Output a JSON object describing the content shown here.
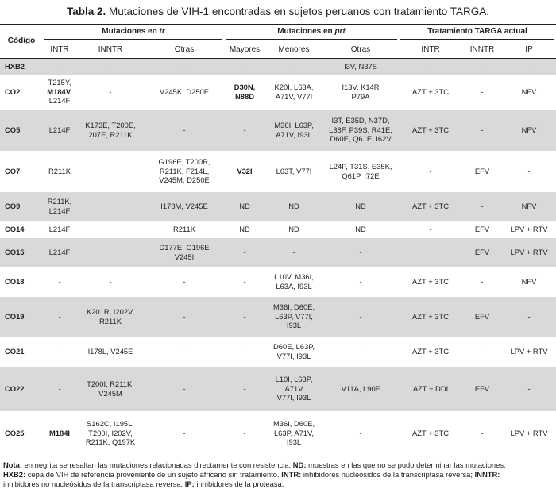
{
  "title": {
    "label": "Tabla 2.",
    "text": " Mutaciones de VIH-1 encontradas en sujetos peruanos con tratamiento TARGA."
  },
  "header": {
    "codigo": "Código",
    "group_tr_prefix": "Mutaciones en ",
    "group_tr_italic": "tr",
    "group_prt_prefix": "Mutaciones en ",
    "group_prt_italic": "prt",
    "group_targa": "Tratamiento TARGA actual",
    "sub": [
      "INTR",
      "INNTR",
      "Otras",
      "Mayores",
      "Menores",
      "Otras",
      "INTR",
      "INNTR",
      "IP"
    ]
  },
  "rows": [
    {
      "code": "HXB2",
      "shade": true,
      "h": 20,
      "cells": [
        [
          "-"
        ],
        [
          "-"
        ],
        [
          "-"
        ],
        [
          "-"
        ],
        [
          "-"
        ],
        [
          "I3V, N37S"
        ],
        [
          "-"
        ],
        [
          "-"
        ],
        [
          "-"
        ]
      ]
    },
    {
      "code": "CO2",
      "shade": false,
      "h": 44,
      "cells": [
        [
          "T215Y,",
          "**M184V,",
          "L214F"
        ],
        [
          "-"
        ],
        [
          "V245K, D250E"
        ],
        [
          "**D30N,",
          "**N88D"
        ],
        [
          "K20I, L63A,",
          "A71V, V77I"
        ],
        [
          "I13V, K14R",
          "P79A"
        ],
        [
          "AZT + 3TC"
        ],
        [
          "-"
        ],
        [
          "NFV"
        ]
      ]
    },
    {
      "code": "CO5",
      "shade": true,
      "h": 52,
      "cells": [
        [
          "L214F"
        ],
        [
          "K173E, T200E,",
          "207E, R211K"
        ],
        [
          "-"
        ],
        [
          "-"
        ],
        [
          "M36I, L63P,",
          "A71V, I93L"
        ],
        [
          "I3T, E35D, N37D,",
          "L38F, P39S, R41E,",
          "D60E, Q61E, I62V"
        ],
        [
          "AZT + 3TC"
        ],
        [
          "-"
        ],
        [
          "NFV"
        ]
      ]
    },
    {
      "code": "CO7",
      "shade": false,
      "h": 52,
      "cells": [
        [
          "R211K"
        ],
        [
          ""
        ],
        [
          "G196E, T200R,",
          "R211K, F214L,",
          "V245M, D250E"
        ],
        [
          "**V32I"
        ],
        [
          "L63T, V77I"
        ],
        [
          "L24P, T31S, E35K,",
          "Q61P, I72E"
        ],
        [
          "-"
        ],
        [
          "EFV"
        ],
        [
          "-"
        ]
      ]
    },
    {
      "code": "CO9",
      "shade": true,
      "h": 36,
      "cells": [
        [
          "R211K,",
          "L214F"
        ],
        [
          ""
        ],
        [
          "I178M, V245E"
        ],
        [
          "ND"
        ],
        [
          "ND"
        ],
        [
          "ND"
        ],
        [
          "AZT + 3TC"
        ],
        [
          "-"
        ],
        [
          "NFV"
        ]
      ]
    },
    {
      "code": "CO14",
      "shade": false,
      "h": 22,
      "cells": [
        [
          "L214F"
        ],
        [
          ""
        ],
        [
          "R211K"
        ],
        [
          "ND"
        ],
        [
          "ND"
        ],
        [
          "ND"
        ],
        [
          "-"
        ],
        [
          "EFV"
        ],
        [
          "LPV + RTV"
        ]
      ]
    },
    {
      "code": "CO15",
      "shade": true,
      "h": 36,
      "cells": [
        [
          "L214F"
        ],
        [
          ""
        ],
        [
          "D177E, G196E",
          "V245I"
        ],
        [
          "-"
        ],
        [
          "-"
        ],
        [
          "-"
        ],
        [
          ""
        ],
        [
          "EFV"
        ],
        [
          "LPV + RTV"
        ]
      ]
    },
    {
      "code": "CO18",
      "shade": false,
      "h": 38,
      "cells": [
        [
          "-"
        ],
        [
          "-"
        ],
        [
          "-"
        ],
        [
          "-"
        ],
        [
          "L10V, M36I,",
          "L63A, I93L"
        ],
        [
          "-"
        ],
        [
          "AZT + 3TC"
        ],
        [
          "-"
        ],
        [
          "NFV"
        ]
      ]
    },
    {
      "code": "CO19",
      "shade": true,
      "h": 50,
      "cells": [
        [
          "-"
        ],
        [
          "K201R, I202V,",
          "R211K"
        ],
        [
          "-"
        ],
        [
          "-"
        ],
        [
          "M36I, D60E,",
          "L63P, V77I,",
          "I93L"
        ],
        [
          "-"
        ],
        [
          "AZT + 3TC"
        ],
        [
          "EFV"
        ],
        [
          "-"
        ]
      ]
    },
    {
      "code": "CO21",
      "shade": false,
      "h": 38,
      "cells": [
        [
          "-"
        ],
        [
          "I178L, V245E"
        ],
        [
          "-"
        ],
        [
          "-"
        ],
        [
          "D60E, L63P,",
          "V77I, I93L"
        ],
        [
          "-"
        ],
        [
          "AZT + 3TC"
        ],
        [
          "-"
        ],
        [
          "LPV + RTV"
        ]
      ]
    },
    {
      "code": "CO22",
      "shade": true,
      "h": 56,
      "cells": [
        [
          "-"
        ],
        [
          "T200I, R211K,",
          "V245M"
        ],
        [
          "-"
        ],
        [
          "-"
        ],
        [
          "L10I, L63P,",
          "A71V",
          "V77I, I93L"
        ],
        [
          "V11A, L90F"
        ],
        [
          "AZT + DDI"
        ],
        [
          "EFV"
        ],
        [
          "-"
        ]
      ]
    },
    {
      "code": "CO25",
      "shade": false,
      "h": 56,
      "cells": [
        [
          "**M184I"
        ],
        [
          "S162C, I195L,",
          "T200I, I202V,",
          "R211K, Q197K"
        ],
        [
          "-"
        ],
        [
          "-"
        ],
        [
          "M36I, D60E,",
          "L63P, A71V,",
          "I93L"
        ],
        [
          "-"
        ],
        [
          "AZT + 3TC"
        ],
        [
          "-"
        ],
        [
          "LPV + RTV"
        ]
      ]
    }
  ],
  "note": {
    "l1_b1": "Nota:",
    "l1_t1": " en negrita se resaltan las mutaciones relacionadas directamente con resistencia. ",
    "l1_b2": "ND:",
    "l1_t2": " muestras en las que no se pudo determinar las mutaciones.",
    "l2_b1": "HXB2:",
    "l2_t1": " cepa de VIH  de referencia proveniente de un sujeto africano sin tratamiento. ",
    "l2_b2": "INTR:",
    "l2_t2": " inhibidores nucleósidos de la transcriptasa reversa; ",
    "l2_b3": "INNTR:",
    "l3_t1": "inhibidores no nucleósidos de la transcriptasa reversa; ",
    "l3_b1": "IP:",
    "l3_t2": " inhibidores de la proteasa."
  }
}
